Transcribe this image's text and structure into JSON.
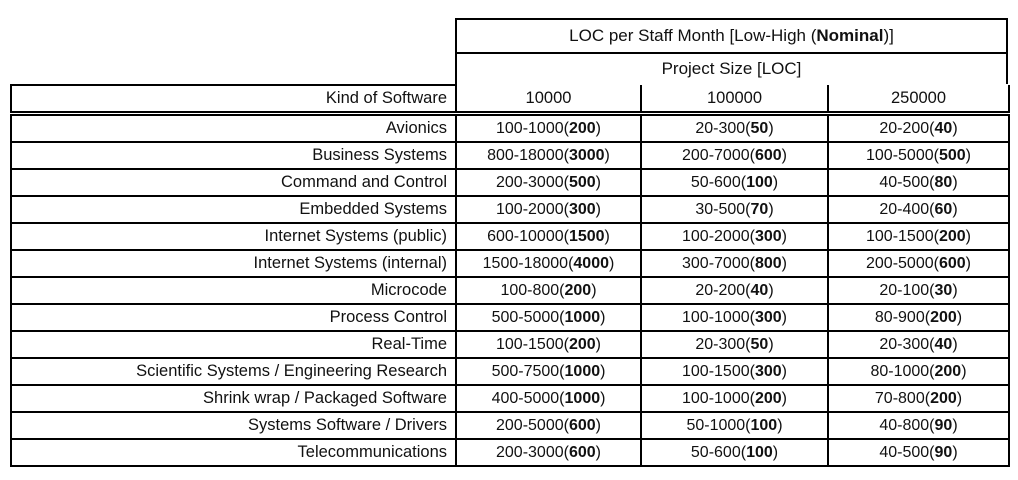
{
  "table": {
    "title": {
      "pre": "LOC per Staff Month [Low-High (",
      "bold": "Nominal",
      "post": ")]"
    },
    "subtitle": "Project Size [LOC]",
    "kind_header": "Kind of Software",
    "size_headers": [
      "10000",
      "100000",
      "250000"
    ],
    "value_format": {
      "open": "(",
      "close": ")"
    },
    "rows": [
      {
        "kind": "Avionics",
        "cells": [
          {
            "range": "100-1000",
            "nominal": "200"
          },
          {
            "range": "20-300",
            "nominal": "50"
          },
          {
            "range": "20-200",
            "nominal": "40"
          }
        ]
      },
      {
        "kind": "Business Systems",
        "cells": [
          {
            "range": "800-18000",
            "nominal": "3000"
          },
          {
            "range": "200-7000",
            "nominal": "600"
          },
          {
            "range": "100-5000",
            "nominal": "500"
          }
        ]
      },
      {
        "kind": "Command and Control",
        "cells": [
          {
            "range": "200-3000",
            "nominal": "500"
          },
          {
            "range": "50-600",
            "nominal": "100"
          },
          {
            "range": "40-500",
            "nominal": "80"
          }
        ]
      },
      {
        "kind": "Embedded Systems",
        "cells": [
          {
            "range": "100-2000",
            "nominal": "300"
          },
          {
            "range": "30-500",
            "nominal": "70"
          },
          {
            "range": "20-400",
            "nominal": "60"
          }
        ]
      },
      {
        "kind": "Internet Systems (public)",
        "cells": [
          {
            "range": "600-10000",
            "nominal": "1500"
          },
          {
            "range": "100-2000",
            "nominal": "300"
          },
          {
            "range": "100-1500",
            "nominal": "200"
          }
        ]
      },
      {
        "kind": "Internet Systems (internal)",
        "cells": [
          {
            "range": "1500-18000",
            "nominal": "4000"
          },
          {
            "range": "300-7000",
            "nominal": "800"
          },
          {
            "range": "200-5000",
            "nominal": "600"
          }
        ]
      },
      {
        "kind": "Microcode",
        "cells": [
          {
            "range": "100-800",
            "nominal": "200"
          },
          {
            "range": "20-200",
            "nominal": "40"
          },
          {
            "range": "20-100",
            "nominal": "30"
          }
        ]
      },
      {
        "kind": "Process Control",
        "cells": [
          {
            "range": "500-5000",
            "nominal": "1000"
          },
          {
            "range": "100-1000",
            "nominal": "300"
          },
          {
            "range": "80-900",
            "nominal": "200"
          }
        ]
      },
      {
        "kind": "Real-Time",
        "cells": [
          {
            "range": "100-1500",
            "nominal": "200"
          },
          {
            "range": "20-300",
            "nominal": "50"
          },
          {
            "range": "20-300",
            "nominal": "40"
          }
        ]
      },
      {
        "kind": "Scientific Systems / Engineering Research",
        "cells": [
          {
            "range": "500-7500",
            "nominal": "1000"
          },
          {
            "range": "100-1500",
            "nominal": "300"
          },
          {
            "range": "80-1000",
            "nominal": "200"
          }
        ]
      },
      {
        "kind": "Shrink wrap / Packaged Software",
        "cells": [
          {
            "range": "400-5000",
            "nominal": "1000"
          },
          {
            "range": "100-1000",
            "nominal": "200"
          },
          {
            "range": "70-800",
            "nominal": "200"
          }
        ]
      },
      {
        "kind": "Systems Software / Drivers",
        "cells": [
          {
            "range": "200-5000",
            "nominal": "600"
          },
          {
            "range": "50-1000",
            "nominal": "100"
          },
          {
            "range": "40-800",
            "nominal": "90"
          }
        ]
      },
      {
        "kind": "Telecommunications",
        "cells": [
          {
            "range": "200-3000",
            "nominal": "600"
          },
          {
            "range": "50-600",
            "nominal": "100"
          },
          {
            "range": "40-500",
            "nominal": "90"
          }
        ]
      }
    ]
  }
}
